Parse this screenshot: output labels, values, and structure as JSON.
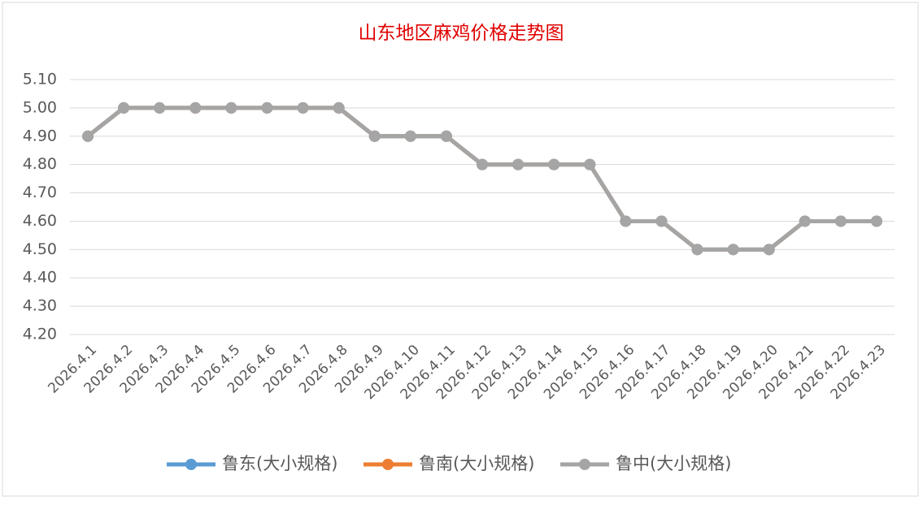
{
  "chart_data": {
    "type": "line",
    "title": "山东地区麻鸡价格走势图",
    "categories": [
      "2026.4.1",
      "2026.4.2",
      "2026.4.3",
      "2026.4.4",
      "2026.4.5",
      "2026.4.6",
      "2026.4.7",
      "2026.4.8",
      "2026.4.9",
      "2026.4.10",
      "2026.4.11",
      "2026.4.12",
      "2026.4.13",
      "2026.4.14",
      "2026.4.15",
      "2026.4.16",
      "2026.4.17",
      "2026.4.18",
      "2026.4.19",
      "2026.4.20",
      "2026.4.21",
      "2026.4.22",
      "2026.4.23"
    ],
    "series": [
      {
        "name": "鲁东(大小规格)",
        "color": "#5b9bd5",
        "values": [
          4.9,
          5.0,
          5.0,
          5.0,
          5.0,
          5.0,
          5.0,
          5.0,
          4.9,
          4.9,
          4.9,
          4.8,
          4.8,
          4.8,
          4.8,
          4.6,
          4.6,
          4.5,
          4.5,
          4.5,
          4.6,
          4.6,
          4.6
        ]
      },
      {
        "name": "鲁南(大小规格)",
        "color": "#ed7d31",
        "values": [
          4.9,
          5.0,
          5.0,
          5.0,
          5.0,
          5.0,
          5.0,
          5.0,
          4.9,
          4.9,
          4.9,
          4.8,
          4.8,
          4.8,
          4.8,
          4.6,
          4.6,
          4.5,
          4.5,
          4.5,
          4.6,
          4.6,
          4.6
        ]
      },
      {
        "name": "鲁中(大小规格)",
        "color": "#a5a5a5",
        "values": [
          4.9,
          5.0,
          5.0,
          5.0,
          5.0,
          5.0,
          5.0,
          5.0,
          4.9,
          4.9,
          4.9,
          4.8,
          4.8,
          4.8,
          4.8,
          4.6,
          4.6,
          4.5,
          4.5,
          4.5,
          4.6,
          4.6,
          4.6
        ]
      }
    ],
    "ylim": [
      4.2,
      5.1
    ],
    "yticks": [
      {
        "value": 4.2,
        "label": "4.20"
      },
      {
        "value": 4.3,
        "label": "4.30"
      },
      {
        "value": 4.4,
        "label": "4.40"
      },
      {
        "value": 4.5,
        "label": "4.50"
      },
      {
        "value": 4.6,
        "label": "4.60"
      },
      {
        "value": 4.7,
        "label": "4.70"
      },
      {
        "value": 4.8,
        "label": "4.80"
      },
      {
        "value": 4.9,
        "label": "4.90"
      },
      {
        "value": 5.0,
        "label": "5.00"
      },
      {
        "value": 5.1,
        "label": "5.10"
      }
    ],
    "grid": true,
    "legend": "bottom"
  }
}
